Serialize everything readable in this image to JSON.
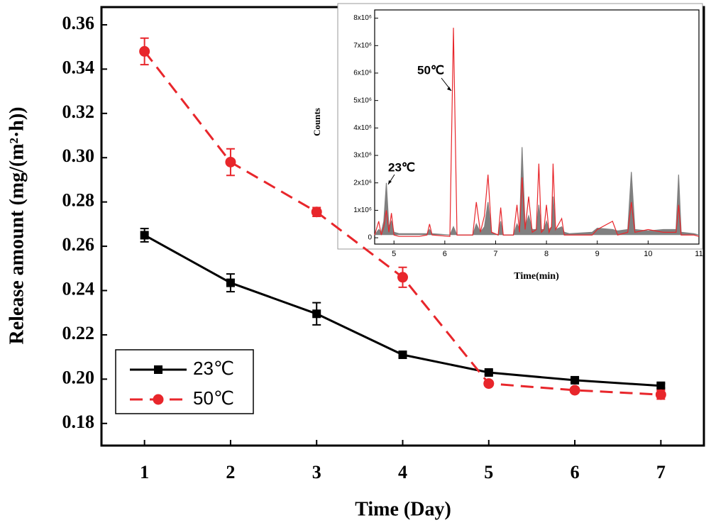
{
  "chart_data": [
    {
      "type": "line",
      "x_label": "Time (Day)",
      "y_label": "Release amount (mg/(m²·h))",
      "x": [
        1,
        2,
        3,
        4,
        5,
        6,
        7
      ],
      "xlim": [
        0.5,
        7.5
      ],
      "xticks": [
        1,
        2,
        3,
        4,
        5,
        6,
        7
      ],
      "ylim": [
        0.17,
        0.368
      ],
      "yticks": [
        0.18,
        {
          "value": 0.2,
          "label": "0.20"
        },
        0.22,
        0.24,
        0.26,
        0.28,
        {
          "value": 0.3,
          "label": "0.30"
        },
        0.32,
        0.34,
        0.36
      ],
      "legend": "lower-left",
      "series": [
        {
          "name": "23℃",
          "color": "#000000",
          "marker": "square",
          "dash": false,
          "values": [
            0.265,
            0.2435,
            0.2295,
            0.211,
            0.203,
            0.1995,
            0.197
          ],
          "errors": [
            0.003,
            0.004,
            0.005,
            0.001,
            0.001,
            0.001,
            0.001
          ]
        },
        {
          "name": "50℃",
          "color": "#e8262b",
          "marker": "circle",
          "dash": true,
          "values": [
            0.348,
            0.298,
            0.2755,
            0.246,
            0.198,
            0.195,
            0.193
          ],
          "errors": [
            0.006,
            0.006,
            0.002,
            0.0045,
            0.001,
            0.001,
            0.002
          ]
        }
      ]
    },
    {
      "type": "chromatogram",
      "x_label": "Time(min)",
      "y_label": "Counts",
      "annotations": [
        "50℃",
        "23℃"
      ],
      "x": [
        4.62,
        4.7,
        4.75,
        4.8,
        4.85,
        4.9,
        4.95,
        5.0,
        5.1,
        5.5,
        5.65,
        5.7,
        5.75,
        6.1,
        6.17,
        6.24,
        6.55,
        6.62,
        6.7,
        6.78,
        6.85,
        6.92,
        7.05,
        7.1,
        7.15,
        7.35,
        7.42,
        7.47,
        7.52,
        7.58,
        7.65,
        7.72,
        7.8,
        7.85,
        7.9,
        7.95,
        8.0,
        8.05,
        8.1,
        8.13,
        8.18,
        8.3,
        8.35,
        8.45,
        8.9,
        9.0,
        9.3,
        9.4,
        9.6,
        9.67,
        9.74,
        10.0,
        10.3,
        10.55,
        10.6,
        10.65,
        10.9,
        11.0
      ],
      "xlim": [
        4.62,
        11
      ],
      "xticks": [
        5,
        6,
        7,
        8,
        9,
        10,
        11
      ],
      "ylim": [
        -230000,
        8300000
      ],
      "yticks": [
        0,
        {
          "value": 1000000,
          "label": "1x10⁶"
        },
        {
          "value": 2000000,
          "label": "2x10⁶"
        },
        {
          "value": 3000000,
          "label": "3x10⁶"
        },
        {
          "value": 4000000,
          "label": "4x10⁶"
        },
        {
          "value": 5000000,
          "label": "5x10⁶"
        },
        {
          "value": 6000000,
          "label": "6x10⁶"
        },
        {
          "value": 7000000,
          "label": "7x10⁶"
        },
        {
          "value": 8000000,
          "label": "8x10⁶"
        }
      ],
      "series": [
        {
          "color": "#808080",
          "fill": true,
          "values": [
            100000,
            300000,
            200000,
            600000,
            2000000,
            400000,
            600000,
            200000,
            150000,
            150000,
            150000,
            300000,
            150000,
            100000,
            400000,
            100000,
            100000,
            500000,
            200000,
            400000,
            1300000,
            200000,
            100000,
            600000,
            100000,
            100000,
            500000,
            300000,
            3300000,
            400000,
            800000,
            300000,
            300000,
            1200000,
            300000,
            300000,
            600000,
            300000,
            400000,
            1500000,
            300000,
            400000,
            200000,
            150000,
            200000,
            350000,
            300000,
            250000,
            300000,
            2400000,
            300000,
            250000,
            300000,
            300000,
            2300000,
            200000,
            150000,
            100000
          ]
        },
        {
          "color": "#e8262b",
          "fill": false,
          "values": [
            100000,
            600000,
            100000,
            400000,
            1000000,
            200000,
            900000,
            100000,
            50000,
            50000,
            100000,
            500000,
            100000,
            50000,
            7650000,
            100000,
            100000,
            1300000,
            200000,
            800000,
            2300000,
            200000,
            100000,
            1100000,
            100000,
            100000,
            1200000,
            200000,
            2200000,
            300000,
            1500000,
            200000,
            300000,
            2700000,
            200000,
            300000,
            1200000,
            200000,
            400000,
            2700000,
            300000,
            700000,
            100000,
            100000,
            100000,
            300000,
            600000,
            100000,
            200000,
            1300000,
            200000,
            300000,
            200000,
            200000,
            1200000,
            100000,
            100000,
            50000
          ]
        }
      ]
    }
  ]
}
